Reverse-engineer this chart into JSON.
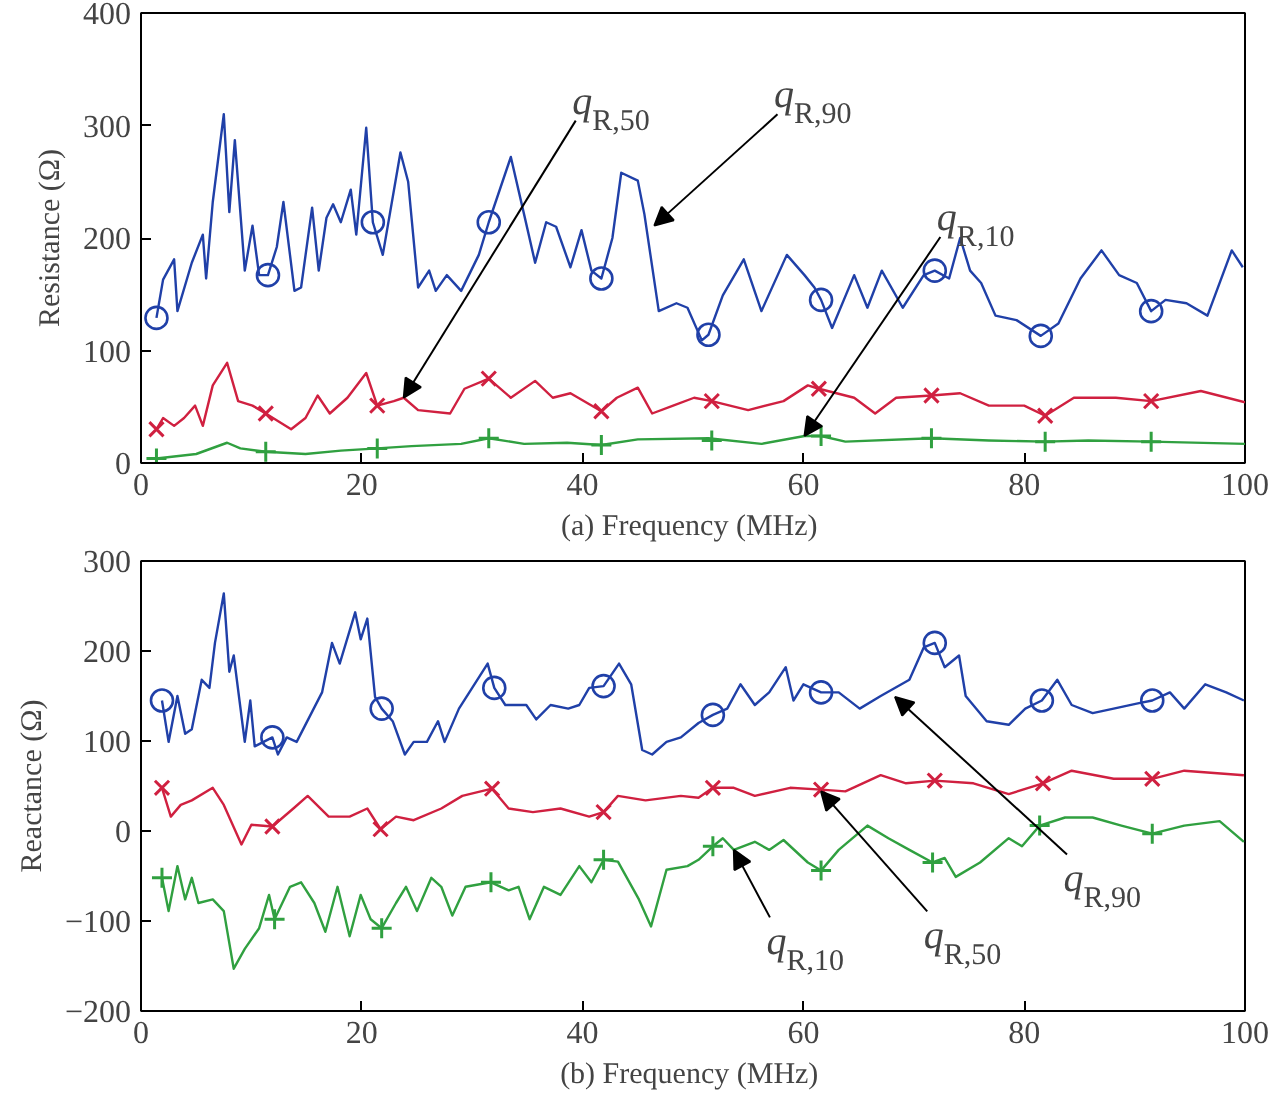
{
  "chart_data": [
    {
      "type": "line",
      "xlabel": "(a)  Frequency (MHz)",
      "ylabel": "Resistance (Ω)",
      "xlim": [
        0,
        100
      ],
      "ylim": [
        0,
        400
      ],
      "xticks": [
        0,
        20,
        40,
        60,
        80,
        100
      ],
      "yticks": [
        0,
        100,
        200,
        300,
        400
      ],
      "grid": false,
      "line_style": "solid",
      "series": [
        {
          "color": "#2040a8",
          "x": [
            1.4,
            2.0,
            3.0,
            3.3,
            4.6,
            5.6,
            5.9,
            6.5,
            7.5,
            8.0,
            8.5,
            9.4,
            10.1,
            10.7,
            11.5,
            12.3,
            12.9,
            13.9,
            14.5,
            15.5,
            16.1,
            16.8,
            17.4,
            18.1,
            19.0,
            19.5,
            20.4,
            21.0,
            21.9,
            23.5,
            24.2,
            25.1,
            26.1,
            26.7,
            27.7,
            29.0,
            30.6,
            31.5,
            33.5,
            34.7,
            35.7,
            36.7,
            37.6,
            38.9,
            39.9,
            40.8,
            41.7,
            42.7,
            43.5,
            45.0,
            45.6,
            46.9,
            48.5,
            49.5,
            50.8,
            51.4,
            52.7,
            54.6,
            56.2,
            58.5,
            60.1,
            61.0,
            61.6,
            62.6,
            64.6,
            65.8,
            67.1,
            69.0,
            70.9,
            71.9,
            73.2,
            74.2,
            75.1,
            76.1,
            77.4,
            79.3,
            81.5,
            83.1,
            85.1,
            87.0,
            88.6,
            90.2,
            91.5,
            92.8,
            94.7,
            96.6,
            98.8,
            99.8
          ],
          "values": [
            129,
            163,
            181,
            135,
            178,
            203,
            164,
            232,
            310,
            223,
            287,
            171,
            211,
            167,
            167,
            192,
            232,
            153,
            156,
            227,
            171,
            218,
            230,
            214,
            243,
            203,
            298,
            214,
            185,
            276,
            250,
            156,
            171,
            153,
            167,
            153,
            185,
            214,
            272,
            221,
            178,
            214,
            210,
            174,
            207,
            171,
            164,
            200,
            258,
            251,
            221,
            135,
            142,
            138,
            109,
            114,
            149,
            181,
            135,
            185,
            167,
            156,
            145,
            120,
            167,
            138,
            171,
            138,
            167,
            171,
            164,
            200,
            171,
            160,
            131,
            127,
            113,
            124,
            164,
            189,
            167,
            160,
            135,
            145,
            142,
            131,
            189,
            174
          ]
        },
        {
          "color": "#d02040",
          "x": [
            1.4,
            2.0,
            3.0,
            3.9,
            4.9,
            5.6,
            6.5,
            7.8,
            8.8,
            10.1,
            11.3,
            13.6,
            14.9,
            16.0,
            17.1,
            18.7,
            20.4,
            21.4,
            22.9,
            23.8,
            25.1,
            28.0,
            29.3,
            31.5,
            33.5,
            35.7,
            37.3,
            38.9,
            41.7,
            43.1,
            45.0,
            46.3,
            48.2,
            50.1,
            51.7,
            55.0,
            58.2,
            60.4,
            61.4,
            64.6,
            66.5,
            68.4,
            71.6,
            74.2,
            76.8,
            80.0,
            81.9,
            84.5,
            88.3,
            91.5,
            96.0,
            100
          ],
          "values": [
            30,
            40,
            33,
            40,
            51,
            33,
            69,
            89,
            55,
            51,
            44,
            30,
            40,
            60,
            44,
            58,
            80,
            51,
            55,
            58,
            47,
            44,
            66,
            75,
            58,
            73,
            58,
            62,
            46,
            58,
            67,
            44,
            51,
            58,
            55,
            47,
            55,
            69,
            66,
            58,
            44,
            58,
            60,
            62,
            51,
            51,
            42,
            58,
            58,
            55,
            64,
            54
          ]
        },
        {
          "color": "#30a040",
          "x": [
            1.4,
            5.0,
            7.8,
            9.0,
            11.3,
            14.9,
            18.1,
            21.4,
            24.5,
            29.0,
            31.5,
            34.7,
            38.6,
            41.7,
            45.0,
            51.4,
            56.2,
            60.1,
            61.6,
            63.8,
            71.6,
            76.8,
            81.9,
            85.8,
            91.5,
            100
          ],
          "values": [
            4,
            8,
            18,
            13,
            10,
            8,
            11,
            13,
            15,
            17,
            22,
            17,
            18,
            16,
            21,
            22,
            17,
            24,
            24,
            19,
            22,
            20,
            19,
            20,
            19,
            17
          ]
        },
        {
          "type": "scatter",
          "marker": "circle",
          "color": "#2040a8",
          "x": [
            1.4,
            11.5,
            21.0,
            31.5,
            41.7,
            51.4,
            61.6,
            71.9,
            81.5,
            91.5
          ],
          "values": [
            129,
            167,
            214,
            214,
            164,
            114,
            145,
            171,
            113,
            135
          ]
        },
        {
          "type": "scatter",
          "marker": "x",
          "color": "#d02040",
          "x": [
            1.4,
            11.3,
            21.4,
            31.5,
            41.7,
            51.7,
            61.4,
            71.6,
            81.9,
            91.5
          ],
          "values": [
            30,
            44,
            51,
            75,
            46,
            55,
            66,
            60,
            42,
            55
          ]
        },
        {
          "type": "scatter",
          "marker": "cross",
          "color": "#30a040",
          "x": [
            1.4,
            11.3,
            21.4,
            31.5,
            41.7,
            51.7,
            61.6,
            71.6,
            81.9,
            91.5
          ],
          "values": [
            4,
            10,
            13,
            22,
            16,
            20,
            24,
            22,
            19,
            19
          ]
        }
      ],
      "annotations": [
        {
          "text": "q$_{R,50}$",
          "x": 23.8,
          "y": 58
        },
        {
          "text": "q$_{R,90}$",
          "x": 46.5,
          "y": 211
        },
        {
          "text": "q$_{R,10}$",
          "x": 60.1,
          "y": 24
        }
      ]
    },
    {
      "type": "line",
      "xlabel": "(b)  Frequency (MHz)",
      "ylabel": "Reactance (Ω)",
      "xlim": [
        0,
        100
      ],
      "ylim": [
        -200,
        300
      ],
      "xticks": [
        0,
        20,
        40,
        60,
        80,
        100
      ],
      "yticks": [
        {
          "value": -200,
          "label": "−200"
        },
        {
          "value": -100,
          "label": "−100"
        },
        0,
        100,
        200,
        300
      ],
      "grid": false,
      "line_style": "solid",
      "series": [
        {
          "color": "#2040a8",
          "x": [
            1.9,
            2.5,
            3.3,
            4.0,
            4.6,
            5.5,
            6.2,
            6.7,
            7.5,
            8.0,
            8.4,
            9.4,
            9.9,
            10.3,
            11.9,
            12.4,
            13.2,
            14.1,
            16.4,
            17.3,
            18.0,
            19.4,
            19.9,
            20.5,
            21.2,
            21.8,
            22.8,
            23.9,
            24.7,
            25.9,
            26.9,
            27.5,
            28.8,
            31.4,
            32.0,
            33.0,
            34.9,
            35.8,
            37.1,
            38.7,
            39.7,
            40.6,
            41.9,
            43.3,
            44.4,
            45.4,
            46.3,
            47.6,
            48.9,
            50.5,
            51.8,
            53.1,
            54.3,
            55.6,
            56.9,
            58.4,
            59.1,
            60.0,
            61.6,
            63.2,
            65.1,
            67.0,
            69.6,
            70.9,
            71.9,
            72.8,
            74.1,
            74.7,
            76.6,
            78.6,
            80.1,
            81.6,
            83.0,
            84.3,
            86.2,
            88.1,
            90.4,
            91.6,
            93.2,
            94.5,
            96.4,
            98.3,
            99.9
          ],
          "values": [
            145,
            99,
            150,
            108,
            113,
            168,
            159,
            209,
            264,
            177,
            195,
            99,
            145,
            94,
            104,
            85,
            104,
            99,
            154,
            209,
            186,
            243,
            213,
            236,
            149,
            136,
            122,
            85,
            99,
            99,
            122,
            99,
            136,
            186,
            159,
            140,
            140,
            124,
            140,
            136,
            140,
            159,
            161,
            186,
            163,
            90,
            85,
            99,
            104,
            120,
            129,
            136,
            163,
            140,
            154,
            182,
            145,
            163,
            154,
            154,
            136,
            150,
            168,
            204,
            209,
            182,
            195,
            150,
            122,
            118,
            136,
            145,
            168,
            140,
            131,
            136,
            142,
            145,
            154,
            136,
            163,
            154,
            145
          ]
        },
        {
          "color": "#d02040",
          "x": [
            1.9,
            2.7,
            3.6,
            4.6,
            6.5,
            7.5,
            9.1,
            10.0,
            11.9,
            13.8,
            15.1,
            17.0,
            18.9,
            20.5,
            21.7,
            23.1,
            24.7,
            27.2,
            29.1,
            31.8,
            33.3,
            35.5,
            38.0,
            40.6,
            41.9,
            43.2,
            45.7,
            48.9,
            50.5,
            51.8,
            53.7,
            55.6,
            58.8,
            61.6,
            63.8,
            67.0,
            69.3,
            71.9,
            75.4,
            78.6,
            81.7,
            84.3,
            88.1,
            91.6,
            94.5,
            99.9
          ],
          "values": [
            48,
            16,
            29,
            34,
            48,
            29,
            -15,
            7,
            5,
            25,
            39,
            16,
            16,
            25,
            2,
            16,
            12,
            25,
            39,
            47,
            25,
            21,
            25,
            16,
            21,
            39,
            34,
            39,
            37,
            48,
            48,
            39,
            48,
            46,
            44,
            62,
            53,
            56,
            53,
            41,
            53,
            67,
            58,
            58,
            67,
            62
          ]
        },
        {
          "color": "#30a040",
          "x": [
            1.9,
            2.5,
            3.3,
            4.0,
            4.6,
            5.2,
            6.5,
            7.5,
            8.4,
            9.4,
            10.7,
            11.6,
            12.1,
            13.5,
            14.5,
            15.7,
            16.7,
            17.8,
            18.9,
            19.9,
            20.8,
            21.8,
            23.1,
            24.0,
            25.0,
            26.3,
            27.2,
            28.2,
            29.4,
            31.7,
            33.3,
            34.2,
            35.2,
            36.5,
            38.0,
            39.7,
            40.8,
            41.9,
            43.2,
            45.1,
            46.2,
            47.6,
            49.5,
            50.5,
            51.8,
            52.7,
            53.7,
            55.6,
            56.9,
            58.2,
            60.4,
            61.6,
            63.2,
            65.8,
            67.7,
            69.6,
            71.7,
            72.8,
            73.8,
            76.0,
            78.6,
            79.8,
            81.4,
            83.7,
            86.2,
            88.8,
            91.6,
            94.5,
            97.7,
            99.9
          ],
          "values": [
            -52,
            -89,
            -39,
            -76,
            -52,
            -80,
            -76,
            -89,
            -153,
            -131,
            -108,
            -71,
            -98,
            -62,
            -57,
            -80,
            -112,
            -62,
            -117,
            -71,
            -98,
            -108,
            -80,
            -62,
            -89,
            -52,
            -62,
            -94,
            -62,
            -57,
            -66,
            -62,
            -98,
            -62,
            -71,
            -39,
            -57,
            -32,
            -34,
            -76,
            -106,
            -43,
            -39,
            -32,
            -17,
            -8,
            -21,
            -12,
            -21,
            -10,
            -35,
            -44,
            -21,
            6,
            -8,
            -21,
            -35,
            -30,
            -51,
            -35,
            -8,
            -17,
            6,
            15,
            15,
            6,
            -3,
            6,
            11,
            -12
          ]
        },
        {
          "type": "scatter",
          "marker": "circle",
          "color": "#2040a8",
          "x": [
            1.9,
            11.9,
            21.8,
            32.0,
            41.9,
            51.8,
            61.6,
            71.9,
            81.6,
            91.6
          ],
          "values": [
            145,
            104,
            136,
            159,
            161,
            129,
            154,
            209,
            145,
            145
          ]
        },
        {
          "type": "scatter",
          "marker": "x",
          "color": "#d02040",
          "x": [
            1.9,
            11.9,
            21.7,
            31.8,
            41.9,
            51.8,
            61.6,
            71.9,
            81.7,
            91.6
          ],
          "values": [
            48,
            5,
            2,
            47,
            21,
            48,
            46,
            56,
            53,
            58
          ]
        },
        {
          "type": "scatter",
          "marker": "cross",
          "color": "#30a040",
          "x": [
            1.9,
            12.1,
            21.8,
            31.7,
            41.9,
            51.8,
            61.6,
            71.7,
            81.4,
            91.6
          ],
          "values": [
            -52,
            -98,
            -108,
            -57,
            -32,
            -17,
            -44,
            -35,
            6,
            -3
          ]
        }
      ],
      "annotations": [
        {
          "text": "q$_{R,10}$",
          "x": 53.7,
          "y": -21
        },
        {
          "text": "q$_{R,50}$",
          "x": 61.6,
          "y": 44
        },
        {
          "text": "q$_{R,90}$",
          "x": 68.3,
          "y": 149
        }
      ]
    }
  ]
}
